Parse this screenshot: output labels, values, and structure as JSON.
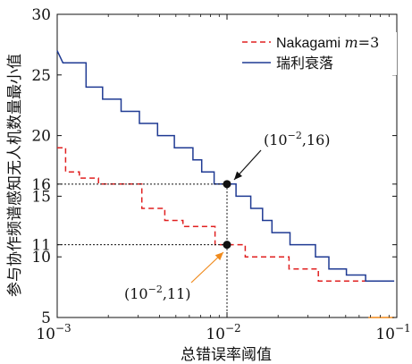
{
  "chart_data": {
    "type": "line",
    "title": "",
    "xlabel": "总错误率阈值",
    "ylabel": "参与协作频谱感知无人机数量最小值",
    "xscale": "log",
    "xlim": [
      0.001,
      0.1
    ],
    "ylim": [
      5,
      30
    ],
    "x_ticks": [
      {
        "value": 0.001,
        "base": "10",
        "exp": "−3"
      },
      {
        "value": 0.01,
        "base": "10",
        "exp": "−2"
      },
      {
        "value": 0.1,
        "base": "10",
        "exp": "−1"
      }
    ],
    "y_ticks": [
      5,
      10,
      11,
      15,
      16,
      20,
      25,
      30
    ],
    "grid": false,
    "legend_position": "top-right",
    "series": [
      {
        "name": "Nakagami m=3",
        "legend_label": {
          "prefix": "Nakagami ",
          "m": "m",
          "suffix": "=3"
        },
        "color": "#e02020",
        "style": "dashed",
        "x": [
          0.001,
          0.00112,
          0.00112,
          0.00135,
          0.00135,
          0.00175,
          0.00175,
          0.00315,
          0.00315,
          0.0043,
          0.0043,
          0.0055,
          0.0055,
          0.0085,
          0.0085,
          0.01,
          0.0128,
          0.0128,
          0.0232,
          0.0232,
          0.0345,
          0.0345,
          0.0675
        ],
        "y": [
          19,
          19,
          17,
          17,
          16.5,
          16.5,
          16,
          16,
          14,
          14,
          13,
          13,
          12.5,
          12.5,
          11,
          11,
          11,
          10,
          10,
          9,
          9,
          8,
          8
        ]
      },
      {
        "name": "瑞利衰落",
        "color": "#1f3a93",
        "style": "solid",
        "x": [
          0.001,
          0.00108,
          0.00108,
          0.00148,
          0.00148,
          0.00185,
          0.00185,
          0.00238,
          0.00238,
          0.00305,
          0.00305,
          0.0039,
          0.0039,
          0.0049,
          0.0049,
          0.0063,
          0.0063,
          0.0071,
          0.0071,
          0.0084,
          0.0084,
          0.0097,
          0.0097,
          0.01,
          0.0113,
          0.0113,
          0.0138,
          0.0138,
          0.0162,
          0.0162,
          0.0184,
          0.0184,
          0.0235,
          0.0235,
          0.0332,
          0.0332,
          0.0398,
          0.0398,
          0.0505,
          0.0505,
          0.0655,
          0.0655,
          0.0965
        ],
        "y": [
          27,
          26,
          26,
          26,
          24,
          24,
          23,
          23,
          22,
          22,
          21,
          21,
          20,
          20,
          19,
          19,
          18,
          18,
          17,
          17,
          16,
          16,
          16,
          16,
          16,
          15,
          15,
          14,
          14,
          13,
          13,
          12,
          12,
          11,
          11,
          10,
          10,
          9,
          9,
          8.5,
          8.5,
          8,
          8
        ]
      },
      {
        "name": "",
        "color": "#f08a1c",
        "style": "solid",
        "x": [
          0.068,
          0.0965
        ],
        "y": [
          5,
          5
        ]
      }
    ],
    "annotations": [
      {
        "x": 0.01,
        "y": 16,
        "text_base": "(10",
        "text_exp": "−2",
        "text_tail": ",16)",
        "arrow_color": "#111111"
      },
      {
        "x": 0.01,
        "y": 11,
        "text_base": "(10",
        "text_exp": "−2",
        "text_tail": ",11)",
        "arrow_color": "#f08a1c"
      }
    ]
  }
}
